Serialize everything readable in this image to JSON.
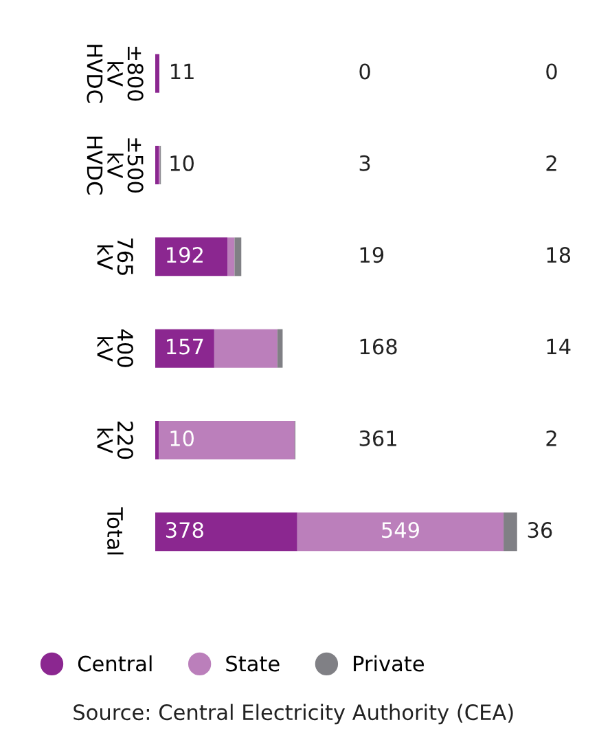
{
  "chart_data": {
    "type": "bar",
    "orientation": "horizontal",
    "stacked": true,
    "categories": [
      "±800 kV HVDC",
      "±500 kV HVDC",
      "765 kV",
      "400 kV",
      "220 kV",
      "Total"
    ],
    "series": [
      {
        "name": "Central",
        "color": "#8b2790",
        "values": [
          11,
          10,
          192,
          157,
          10,
          378
        ],
        "value_labels": [
          "11",
          "10",
          "192",
          "157",
          "10",
          "378"
        ]
      },
      {
        "name": "State",
        "color": "#bb7fbb",
        "values": [
          0,
          3,
          19,
          168,
          361,
          549
        ],
        "value_labels": [
          null,
          null,
          null,
          null,
          null,
          "549"
        ]
      },
      {
        "name": "Private",
        "color": "#808085",
        "values": [
          0,
          2,
          18,
          14,
          2,
          36
        ],
        "value_labels": [
          null,
          null,
          null,
          null,
          null,
          "36"
        ]
      }
    ],
    "legend": "bottom",
    "grid": false,
    "annotations": [
      "0",
      "0",
      "3",
      "2",
      "19",
      "18",
      "168",
      "14",
      "361",
      "2",
      "Source: Central Electricity Authority (CEA)"
    ]
  }
}
